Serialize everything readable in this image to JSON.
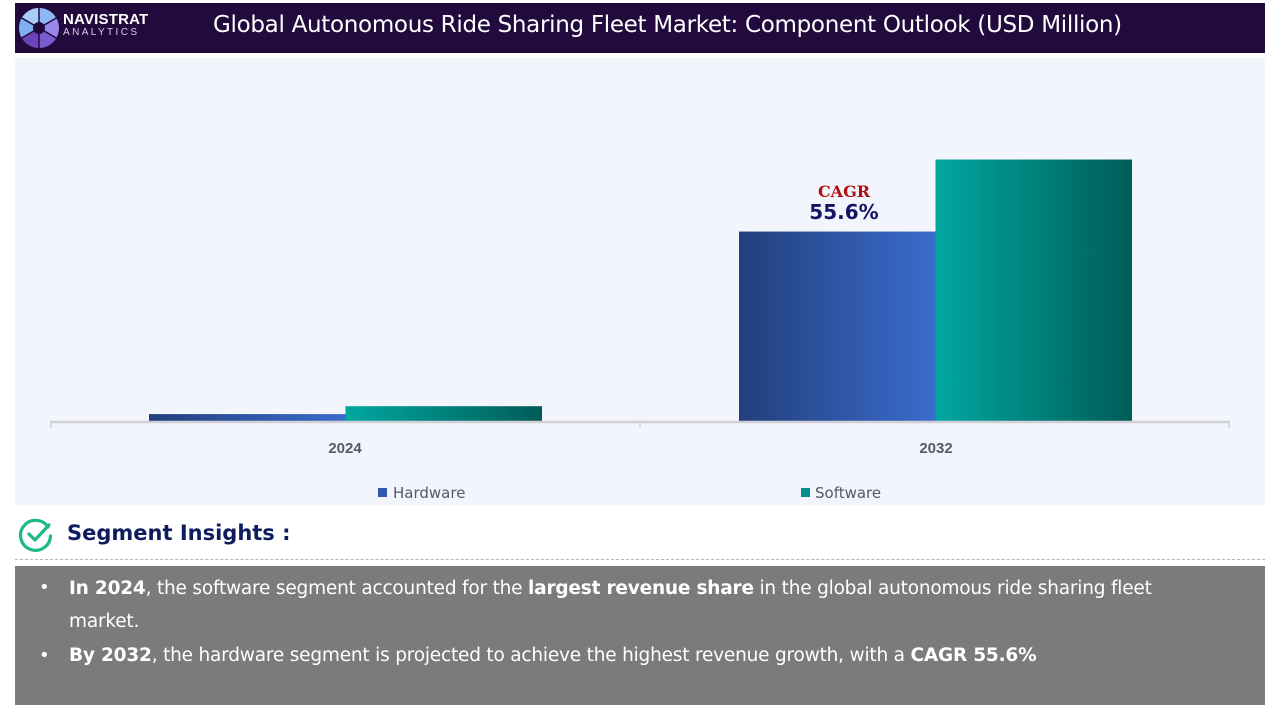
{
  "header": {
    "brand_name": "NAVISTRAT",
    "brand_sub": "ANALYTICS",
    "title": "Global Autonomous Ride Sharing Fleet Market: Component Outlook (USD Million)"
  },
  "chart_data": {
    "type": "bar",
    "title": "Global Autonomous Ride Sharing Fleet Market: Component Outlook (USD Million)",
    "xlabel": "",
    "ylabel": "",
    "categories": [
      "2024",
      "2032"
    ],
    "series": [
      {
        "name": "Hardware",
        "values": [
          7,
          192
        ],
        "color_start": "#233f7d",
        "color_end": "#3a6ccc"
      },
      {
        "name": "Software",
        "values": [
          15,
          265
        ],
        "color_start": "#00a8a0",
        "color_end": "#005c58"
      }
    ],
    "values_note": "No y-axis scale shown; values are relative estimates",
    "ylim": [
      0,
      300
    ],
    "grid": false,
    "legend_position": "bottom",
    "annotation": {
      "label": "CAGR",
      "value": "55.6%",
      "category": "2032",
      "series": "Hardware"
    }
  },
  "insights": {
    "heading": "Segment Insights :",
    "bullets": [
      {
        "parts": [
          {
            "text": "In 2024",
            "bold": true
          },
          {
            "text": ", the software segment accounted for the ",
            "bold": false
          },
          {
            "text": "largest revenue share",
            "bold": true
          },
          {
            "text": " in the global autonomous ride sharing fleet",
            "bold": false
          }
        ],
        "continuation": "market."
      },
      {
        "parts": [
          {
            "text": "By 2032",
            "bold": true
          },
          {
            "text": ", the hardware segment is projected to achieve the highest revenue growth, with a ",
            "bold": false
          },
          {
            "text": "CAGR 55.6%",
            "bold": true
          }
        ]
      }
    ]
  }
}
